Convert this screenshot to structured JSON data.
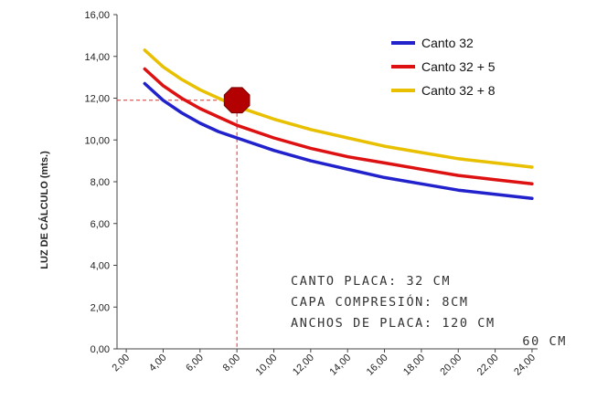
{
  "chart_data": {
    "type": "line",
    "title": "",
    "xlabel": "",
    "ylabel": "LUZ DE CÁLCULO (mts.)",
    "xlim": [
      2,
      24
    ],
    "ylim": [
      0,
      16
    ],
    "xticks": [
      "2,00",
      "4,00",
      "6,00",
      "8,00",
      "10,00",
      "12,00",
      "14,00",
      "16,00",
      "18,00",
      "20,00",
      "22,00",
      "24,00"
    ],
    "yticks": [
      "0,00",
      "2,00",
      "4,00",
      "6,00",
      "8,00",
      "10,00",
      "12,00",
      "14,00",
      "16,00"
    ],
    "grid": false,
    "legend_position": "top-right",
    "series": [
      {
        "name": "Canto 32",
        "color": "#2222cc",
        "x": [
          3,
          4,
          5,
          6,
          7,
          8,
          10,
          12,
          14,
          16,
          18,
          20,
          22,
          24
        ],
        "y": [
          12.7,
          11.9,
          11.3,
          10.8,
          10.4,
          10.1,
          9.5,
          9.0,
          8.6,
          8.2,
          7.9,
          7.6,
          7.4,
          7.2
        ]
      },
      {
        "name": "Canto 32 + 5",
        "color": "#dd1111",
        "x": [
          3,
          4,
          5,
          6,
          7,
          8,
          10,
          12,
          14,
          16,
          18,
          20,
          22,
          24
        ],
        "y": [
          13.4,
          12.6,
          12.0,
          11.5,
          11.1,
          10.7,
          10.1,
          9.6,
          9.2,
          8.9,
          8.6,
          8.3,
          8.1,
          7.9
        ]
      },
      {
        "name": "Canto 32 + 8",
        "color": "#e8c000",
        "x": [
          3,
          4,
          5,
          6,
          7,
          8,
          10,
          12,
          14,
          16,
          18,
          20,
          22,
          24
        ],
        "y": [
          14.3,
          13.5,
          12.9,
          12.4,
          12.0,
          11.6,
          11.0,
          10.5,
          10.1,
          9.7,
          9.4,
          9.1,
          8.9,
          8.7
        ]
      }
    ],
    "marker": {
      "x": 8,
      "y": 11.9,
      "color": "#b30000"
    },
    "annotation_lines": [
      "CANTO PLACA: 32 CM",
      "CAPA COMPRESIÓN: 8CM",
      "ANCHOS DE PLACA: 120 CM",
      "60 CM"
    ]
  }
}
